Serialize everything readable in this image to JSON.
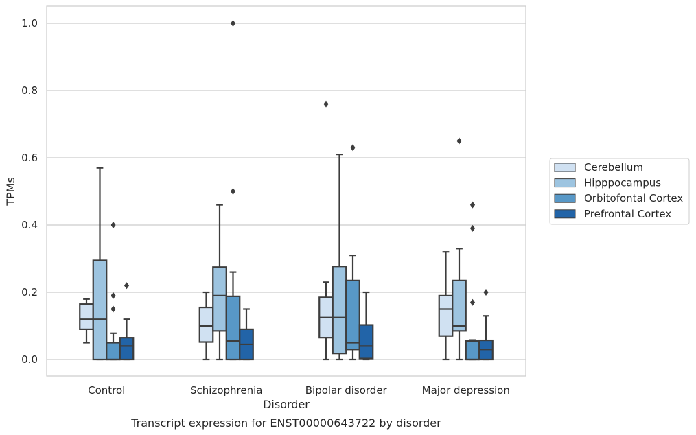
{
  "chart_data": {
    "type": "box",
    "title": "",
    "caption": "Transcript expression for ENST00000643722 by disorder",
    "xlabel": "Disorder",
    "ylabel": "TPMs",
    "ylim": [
      -0.048,
      1.05
    ],
    "yticks": [
      0.0,
      0.2,
      0.4,
      0.6,
      0.8,
      1.0
    ],
    "ytick_labels": [
      "0.0",
      "0.2",
      "0.4",
      "0.6",
      "0.8",
      "1.0"
    ],
    "grid": "horizontal",
    "legend_position": "right",
    "categories": [
      "Control",
      "Schizophrenia",
      "Bipolar disorder",
      "Major depression"
    ],
    "series": [
      {
        "name": "Cerebellum",
        "color": "#d0e1f2",
        "boxes": [
          {
            "whisker_low": 0.05,
            "q1": 0.09,
            "median": 0.12,
            "q3": 0.165,
            "whisker_high": 0.18,
            "outliers": []
          },
          {
            "whisker_low": 0.0,
            "q1": 0.052,
            "median": 0.1,
            "q3": 0.155,
            "whisker_high": 0.2,
            "outliers": []
          },
          {
            "whisker_low": 0.0,
            "q1": 0.065,
            "median": 0.125,
            "q3": 0.185,
            "whisker_high": 0.23,
            "outliers": [
              0.76
            ]
          },
          {
            "whisker_low": 0.0,
            "q1": 0.07,
            "median": 0.15,
            "q3": 0.19,
            "whisker_high": 0.32,
            "outliers": []
          }
        ]
      },
      {
        "name": "Hipppocampus",
        "color": "#9dc4e0",
        "boxes": [
          {
            "whisker_low": 0.0,
            "q1": 0.0,
            "median": 0.12,
            "q3": 0.295,
            "whisker_high": 0.57,
            "outliers": []
          },
          {
            "whisker_low": 0.0,
            "q1": 0.085,
            "median": 0.19,
            "q3": 0.275,
            "whisker_high": 0.46,
            "outliers": []
          },
          {
            "whisker_low": 0.0,
            "q1": 0.018,
            "median": 0.125,
            "q3": 0.277,
            "whisker_high": 0.61,
            "outliers": []
          },
          {
            "whisker_low": 0.0,
            "q1": 0.085,
            "median": 0.1,
            "q3": 0.235,
            "whisker_high": 0.33,
            "outliers": [
              0.65
            ]
          }
        ]
      },
      {
        "name": "Orbitofontal Cortex",
        "color": "#5898c7",
        "boxes": [
          {
            "whisker_low": 0.0,
            "q1": 0.0,
            "median": 0.0,
            "q3": 0.05,
            "whisker_high": 0.078,
            "outliers": [
              0.15,
              0.19,
              0.4
            ]
          },
          {
            "whisker_low": 0.0,
            "q1": 0.0,
            "median": 0.055,
            "q3": 0.188,
            "whisker_high": 0.26,
            "outliers": [
              0.5,
              1.0
            ]
          },
          {
            "whisker_low": 0.0,
            "q1": 0.03,
            "median": 0.05,
            "q3": 0.235,
            "whisker_high": 0.31,
            "outliers": [
              0.63
            ]
          },
          {
            "whisker_low": 0.0,
            "q1": 0.0,
            "median": 0.0,
            "q3": 0.055,
            "whisker_high": 0.058,
            "outliers": [
              0.17,
              0.39,
              0.46
            ]
          }
        ]
      },
      {
        "name": "Prefrontal Cortex",
        "color": "#2264a8",
        "boxes": [
          {
            "whisker_low": 0.0,
            "q1": 0.0,
            "median": 0.04,
            "q3": 0.065,
            "whisker_high": 0.12,
            "outliers": [
              0.22
            ]
          },
          {
            "whisker_low": 0.0,
            "q1": 0.0,
            "median": 0.045,
            "q3": 0.09,
            "whisker_high": 0.15,
            "outliers": []
          },
          {
            "whisker_low": 0.0,
            "q1": 0.003,
            "median": 0.04,
            "q3": 0.103,
            "whisker_high": 0.2,
            "outliers": []
          },
          {
            "whisker_low": 0.0,
            "q1": 0.0,
            "median": 0.03,
            "q3": 0.057,
            "whisker_high": 0.13,
            "outliers": [
              0.2
            ]
          }
        ]
      }
    ]
  },
  "colors": {
    "box_edge": "#3d3d3d",
    "grid": "#cccccc",
    "axes_frame": "#cccccc",
    "text": "#262626"
  }
}
